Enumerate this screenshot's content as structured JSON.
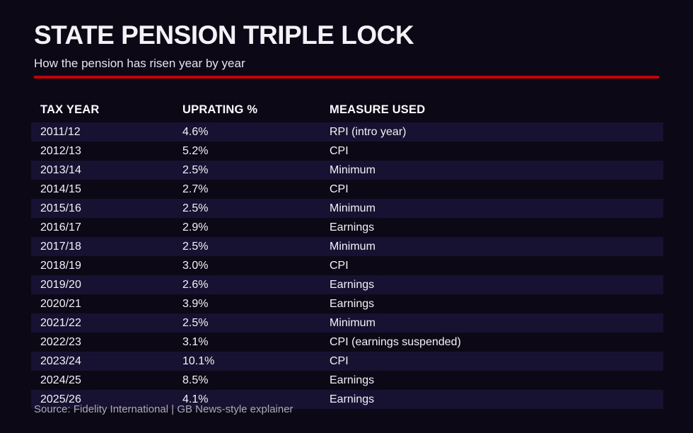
{
  "header": {
    "title": "STATE PENSION TRIPLE LOCK",
    "subtitle": "How the pension has risen year by year"
  },
  "table": {
    "columns": [
      "TAX YEAR",
      "UPRATING %",
      "MEASURE USED"
    ],
    "rows": [
      {
        "tax_year": "2011/12",
        "uprating": "4.6%",
        "measure": "RPI (intro year)"
      },
      {
        "tax_year": "2012/13",
        "uprating": "5.2%",
        "measure": "CPI"
      },
      {
        "tax_year": "2013/14",
        "uprating": "2.5%",
        "measure": "Minimum"
      },
      {
        "tax_year": "2014/15",
        "uprating": "2.7%",
        "measure": "CPI"
      },
      {
        "tax_year": "2015/16",
        "uprating": "2.5%",
        "measure": "Minimum"
      },
      {
        "tax_year": "2016/17",
        "uprating": "2.9%",
        "measure": "Earnings"
      },
      {
        "tax_year": "2017/18",
        "uprating": "2.5%",
        "measure": "Minimum"
      },
      {
        "tax_year": "2018/19",
        "uprating": "3.0%",
        "measure": "CPI"
      },
      {
        "tax_year": "2019/20",
        "uprating": "2.6%",
        "measure": "Earnings"
      },
      {
        "tax_year": "2020/21",
        "uprating": "3.9%",
        "measure": "Earnings"
      },
      {
        "tax_year": "2021/22",
        "uprating": "2.5%",
        "measure": "Minimum"
      },
      {
        "tax_year": "2022/23",
        "uprating": "3.1%",
        "measure": "CPI (earnings suspended)"
      },
      {
        "tax_year": "2023/24",
        "uprating": "10.1%",
        "measure": "CPI"
      },
      {
        "tax_year": "2024/25",
        "uprating": "8.5%",
        "measure": "Earnings"
      },
      {
        "tax_year": "2025/26",
        "uprating": "4.1%",
        "measure": "Earnings"
      }
    ]
  },
  "footer": {
    "source": "Source: Fidelity International | GB News-style explainer"
  },
  "colors": {
    "background": "#0c0816",
    "row_stripe": "#171231",
    "accent_red": "#c40006",
    "text_primary": "#f4f2f7",
    "text_muted": "#aeaab8"
  },
  "chart_data": {
    "type": "table",
    "title": "STATE PENSION TRIPLE LOCK",
    "subtitle": "How the pension has risen year by year",
    "columns": [
      "TAX YEAR",
      "UPRATING %",
      "MEASURE USED"
    ],
    "categories": [
      "2011/12",
      "2012/13",
      "2013/14",
      "2014/15",
      "2015/16",
      "2016/17",
      "2017/18",
      "2018/19",
      "2019/20",
      "2020/21",
      "2021/22",
      "2022/23",
      "2023/24",
      "2024/25",
      "2025/26"
    ],
    "uprating_percent": [
      4.6,
      5.2,
      2.5,
      2.7,
      2.5,
      2.9,
      2.5,
      3.0,
      2.6,
      3.9,
      2.5,
      3.1,
      10.1,
      8.5,
      4.1
    ],
    "measure_used": [
      "RPI (intro year)",
      "CPI",
      "Minimum",
      "CPI",
      "Minimum",
      "Earnings",
      "Minimum",
      "CPI",
      "Earnings",
      "Earnings",
      "Minimum",
      "CPI (earnings suspended)",
      "CPI",
      "Earnings",
      "Earnings"
    ],
    "legend_position": "none",
    "grid": "row-stripes",
    "source": "Source: Fidelity International | GB News-style explainer"
  }
}
